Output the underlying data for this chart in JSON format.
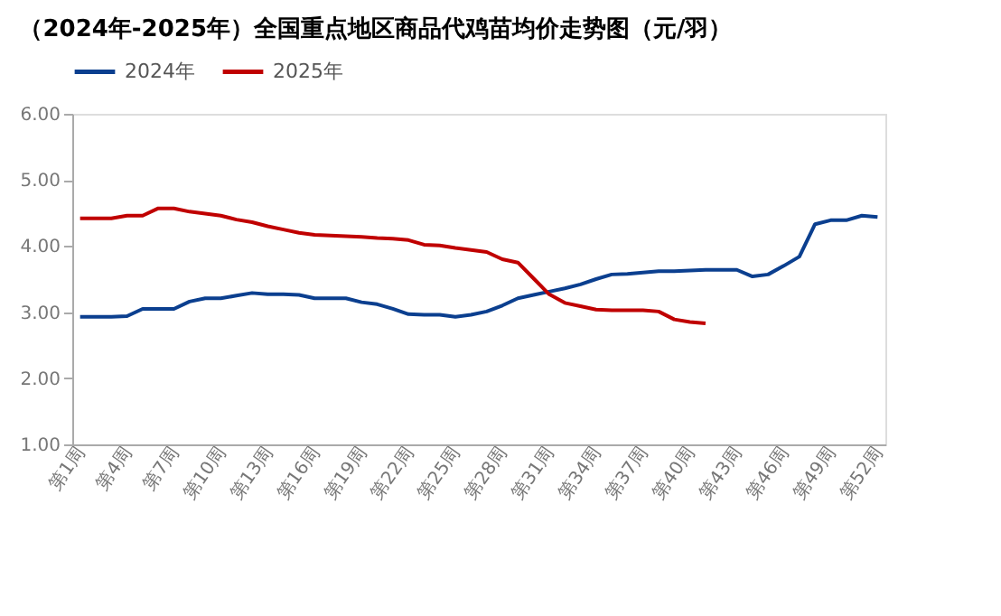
{
  "chart_data": {
    "type": "line",
    "title": "（2024年-2025年）全国重点地区商品代鸡苗均价走势图（元/羽）",
    "categories": [
      "第1周",
      null,
      null,
      "第4周",
      null,
      null,
      "第7周",
      null,
      null,
      "第10周",
      null,
      null,
      "第13周",
      null,
      null,
      "第16周",
      null,
      null,
      "第19周",
      null,
      null,
      "第22周",
      null,
      null,
      "第25周",
      null,
      null,
      "第28周",
      null,
      null,
      "第31周",
      null,
      null,
      "第34周",
      null,
      null,
      "第37周",
      null,
      null,
      "第40周",
      null,
      null,
      "第43周",
      null,
      null,
      "第46周",
      null,
      null,
      "第49周",
      null,
      null,
      "第52周"
    ],
    "series": [
      {
        "name": "2024年",
        "color": "#0b3f8f",
        "values": [
          2.93,
          2.93,
          2.93,
          2.94,
          3.05,
          3.05,
          3.05,
          3.16,
          3.21,
          3.21,
          3.25,
          3.29,
          3.27,
          3.27,
          3.26,
          3.21,
          3.21,
          3.21,
          3.15,
          3.12,
          3.05,
          2.97,
          2.96,
          2.96,
          2.93,
          2.96,
          3.01,
          3.1,
          3.21,
          3.26,
          3.31,
          3.36,
          3.42,
          3.5,
          3.57,
          3.58,
          3.6,
          3.62,
          3.62,
          3.63,
          3.64,
          3.64,
          3.64,
          3.54,
          3.57,
          3.7,
          3.84,
          4.33,
          4.39,
          4.39,
          4.46,
          4.44
        ]
      },
      {
        "name": "2025年",
        "color": "#c00000",
        "values": [
          4.42,
          4.42,
          4.42,
          4.46,
          4.46,
          4.57,
          4.57,
          4.52,
          4.49,
          4.46,
          4.4,
          4.36,
          4.3,
          4.25,
          4.2,
          4.17,
          4.16,
          4.15,
          4.14,
          4.12,
          4.11,
          4.09,
          4.02,
          4.01,
          3.97,
          3.94,
          3.91,
          3.8,
          3.75,
          3.51,
          3.27,
          3.14,
          3.09,
          3.04,
          3.03,
          3.03,
          3.03,
          3.01,
          2.89,
          2.85,
          2.83,
          null,
          null,
          null,
          null,
          null,
          null,
          null,
          null,
          null,
          null,
          null
        ]
      }
    ],
    "ylim": [
      1,
      6
    ],
    "yticks": [
      {
        "value": 1,
        "label": "1.00"
      },
      {
        "value": 2,
        "label": "2.00"
      },
      {
        "value": 3,
        "label": "3.00"
      },
      {
        "value": 4,
        "label": "4.00"
      },
      {
        "value": 5,
        "label": "5.00"
      },
      {
        "value": 6,
        "label": "6.00"
      }
    ],
    "legend": "top",
    "grid": false,
    "marker": "none",
    "line_style": "solid"
  }
}
